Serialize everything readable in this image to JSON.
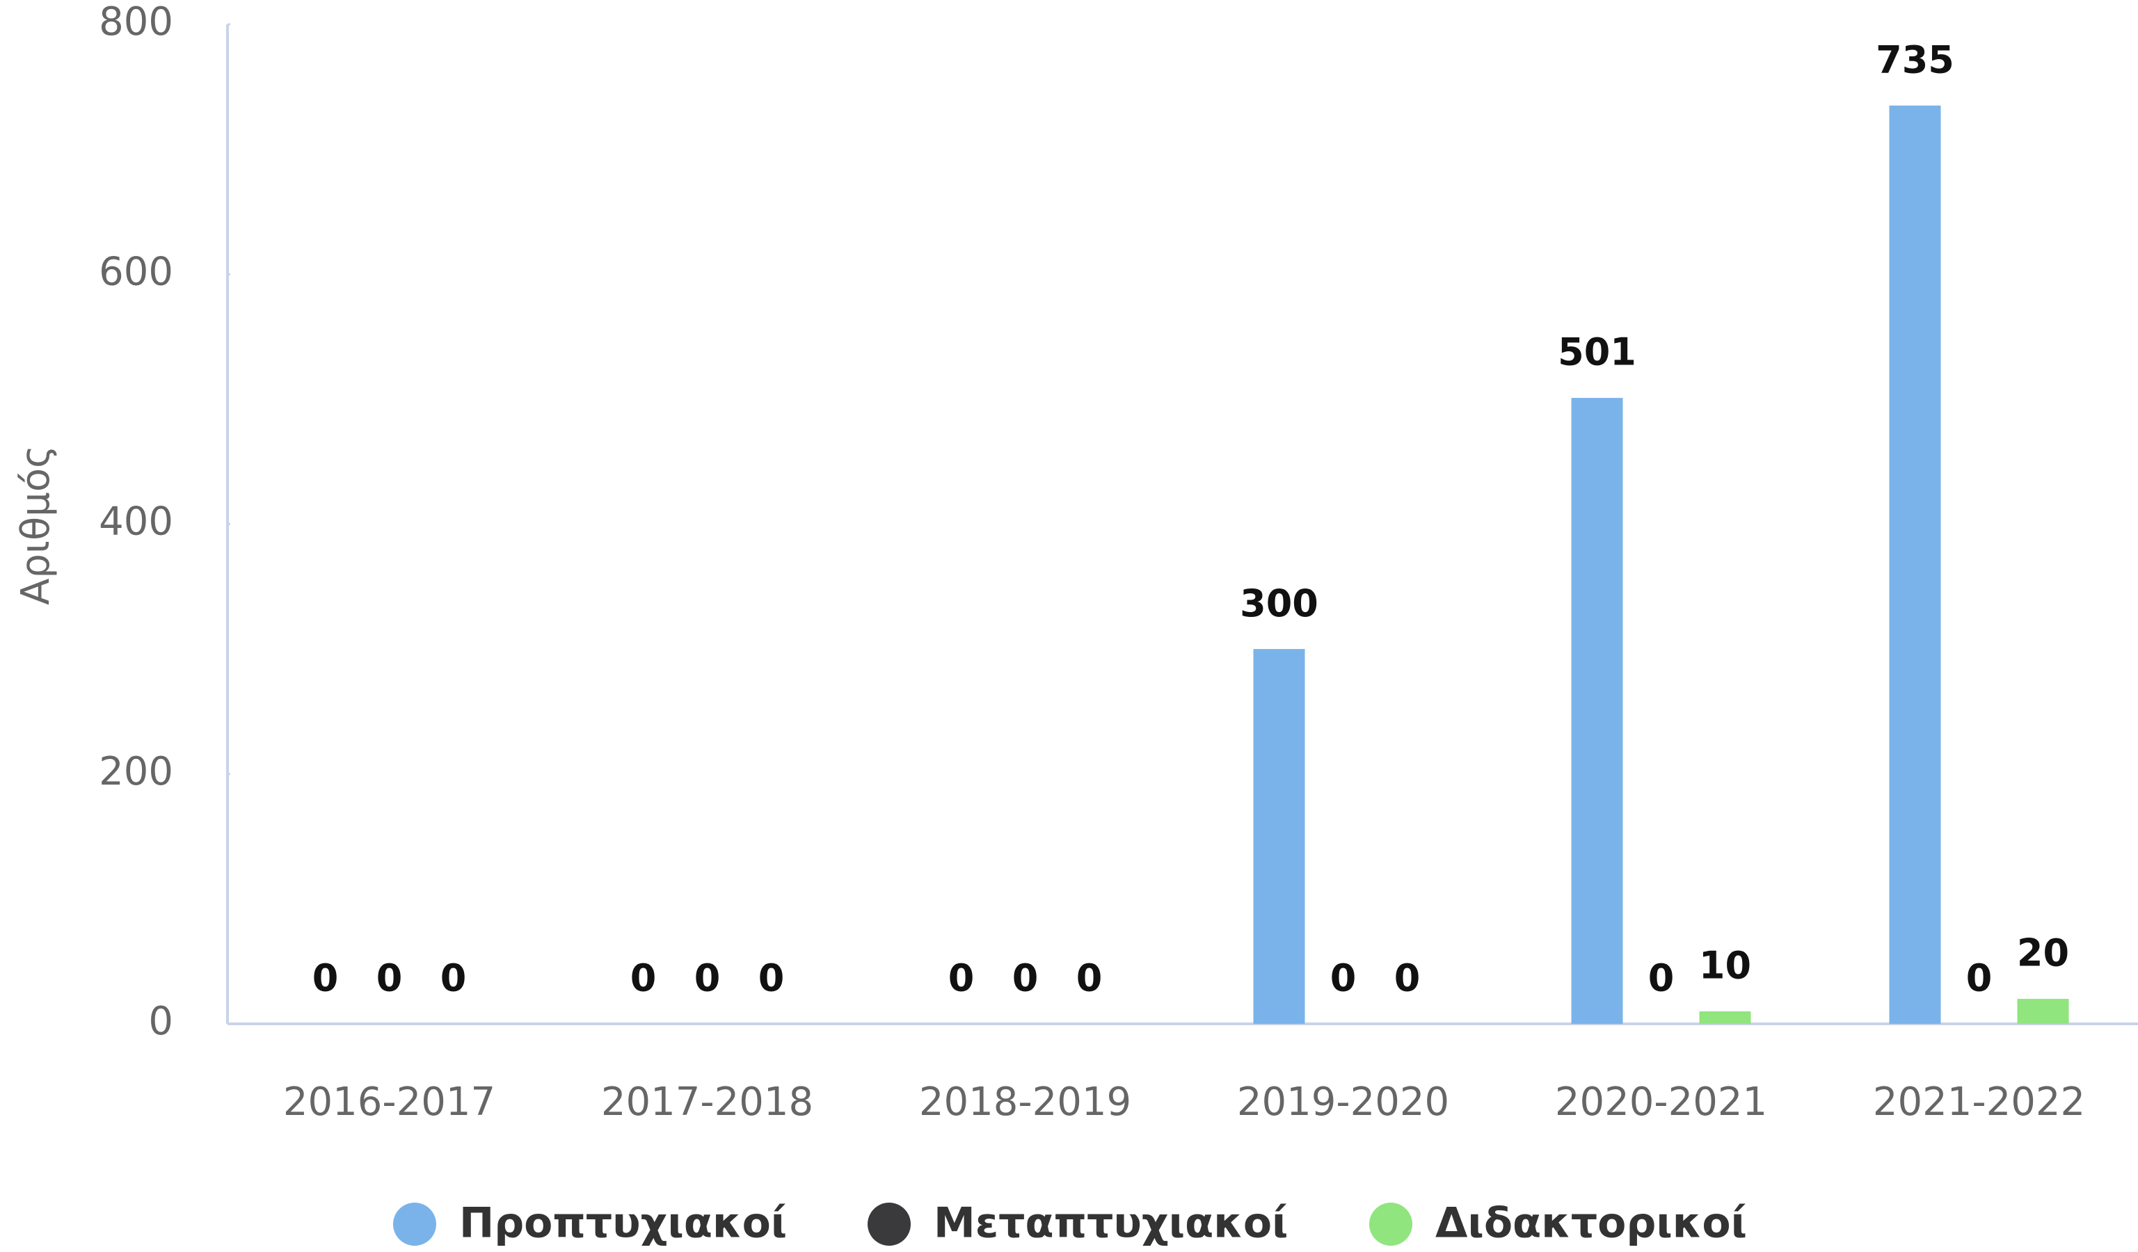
{
  "chart_data": {
    "type": "bar",
    "y_label": "Αριθμός",
    "categories": [
      "2016-2017",
      "2017-2018",
      "2018-2019",
      "2019-2020",
      "2020-2021",
      "2021-2022"
    ],
    "series": [
      {
        "name": "Προπτυχιακοί",
        "color": "#7ab3ea",
        "values": [
          0,
          0,
          0,
          300,
          501,
          735
        ]
      },
      {
        "name": "Μεταπτυχιακοί",
        "color": "#3a3a3c",
        "values": [
          0,
          0,
          0,
          0,
          0,
          0
        ]
      },
      {
        "name": "Διδακτορικοί",
        "color": "#90e57e",
        "values": [
          0,
          0,
          0,
          0,
          10,
          20
        ]
      }
    ],
    "ylim": [
      0,
      800
    ],
    "yticks": [
      0,
      200,
      400,
      600,
      800
    ],
    "grid": false,
    "legend": "bottom"
  }
}
